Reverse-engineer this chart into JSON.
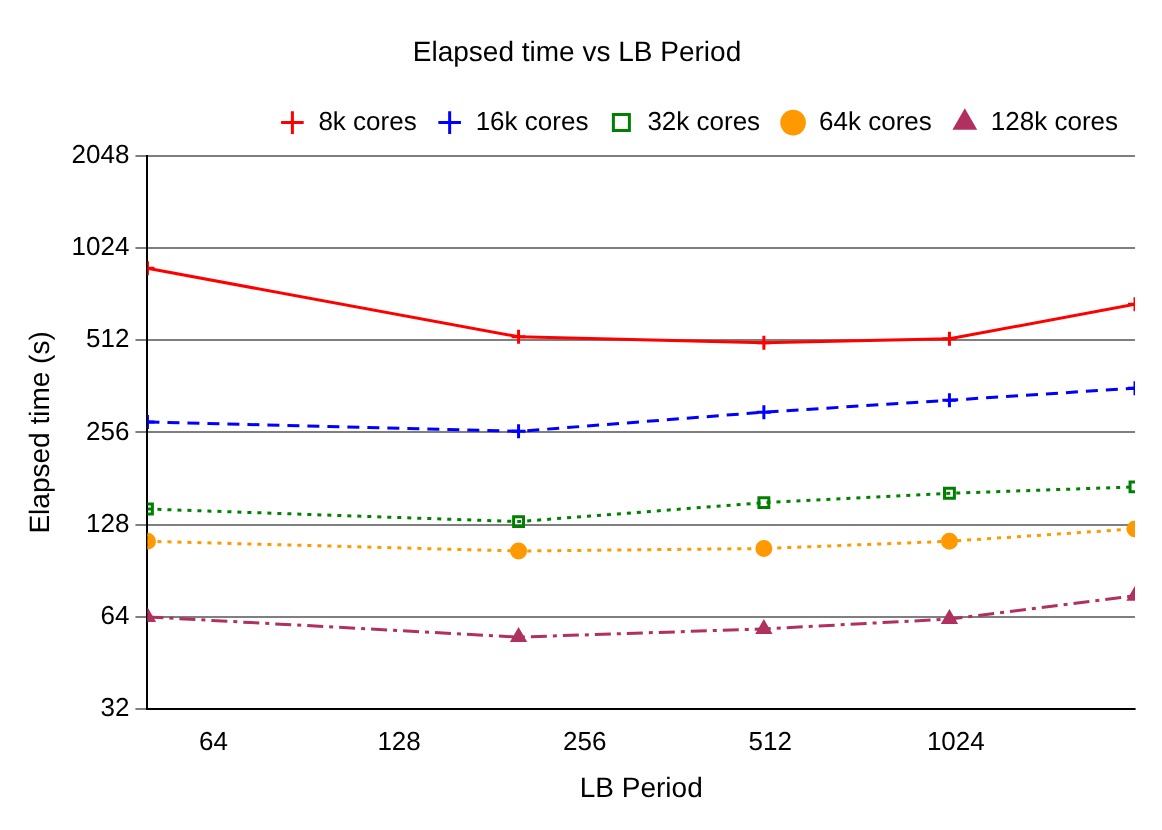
{
  "chart_data": {
    "type": "line",
    "title": "Elapsed time vs LB Period",
    "xlabel": "LB Period",
    "ylabel": "Elapsed time (s)",
    "x": [
      50,
      200,
      500,
      1000,
      2000
    ],
    "log": "xy",
    "xlim": [
      50,
      2000
    ],
    "xticks": [
      64,
      128,
      256,
      512,
      1024
    ],
    "ylim": [
      32,
      2048
    ],
    "yticks": [
      32,
      64,
      128,
      256,
      512,
      1024,
      2048
    ],
    "grid": "y",
    "legend": "top right",
    "series": [
      {
        "name": "8k cores",
        "color": "#ff0000",
        "values": [
          878,
          525,
          502,
          517,
          670
        ],
        "marker": "cross",
        "line_style": "solid"
      },
      {
        "name": "16k cores",
        "color": "#0000ff",
        "values": [
          277,
          258,
          298,
          326,
          357
        ],
        "marker": "cross",
        "line_style": "dashed"
      },
      {
        "name": "32k cores",
        "color": "#008000",
        "values": [
          144,
          131,
          151,
          162,
          170
        ],
        "marker": "square",
        "line_style": "dotted"
      },
      {
        "name": "64k cores",
        "color": "#ff9900",
        "values": [
          113,
          105,
          107,
          113,
          124
        ],
        "marker": "circle",
        "line_style": "dotted"
      },
      {
        "name": "128k cores",
        "color": "#b03060",
        "values": [
          64,
          55,
          58.5,
          63,
          75
        ],
        "marker": "triangle",
        "line_style": "dashdot"
      }
    ]
  }
}
